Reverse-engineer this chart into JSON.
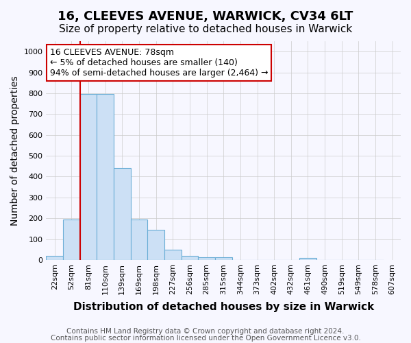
{
  "title1": "16, CLEEVES AVENUE, WARWICK, CV34 6LT",
  "title2": "Size of property relative to detached houses in Warwick",
  "xlabel": "Distribution of detached houses by size in Warwick",
  "ylabel": "Number of detached properties",
  "tick_labels": [
    "22sqm",
    "52sqm",
    "81sqm",
    "110sqm",
    "139sqm",
    "169sqm",
    "198sqm",
    "227sqm",
    "256sqm",
    "285sqm",
    "315sqm",
    "344sqm",
    "373sqm",
    "402sqm",
    "432sqm",
    "461sqm",
    "490sqm",
    "519sqm",
    "549sqm",
    "578sqm",
    "607sqm"
  ],
  "values": [
    20,
    195,
    795,
    795,
    440,
    195,
    143,
    48,
    18,
    13,
    13,
    0,
    0,
    0,
    0,
    10,
    0,
    0,
    0,
    0
  ],
  "bar_color": "#cce0f5",
  "bar_edge_color": "#6baed6",
  "red_line_x": 2,
  "annotation_text": "16 CLEEVES AVENUE: 78sqm\n← 5% of detached houses are smaller (140)\n94% of semi-detached houses are larger (2,464) →",
  "annotation_box_color": "#ffffff",
  "annotation_box_edge": "#cc0000",
  "red_line_color": "#cc0000",
  "ylim": [
    0,
    1050
  ],
  "yticks": [
    0,
    100,
    200,
    300,
    400,
    500,
    600,
    700,
    800,
    900,
    1000
  ],
  "grid_color": "#cccccc",
  "background_color": "#f7f7ff",
  "footer1": "Contains HM Land Registry data © Crown copyright and database right 2024.",
  "footer2": "Contains public sector information licensed under the Open Government Licence v3.0.",
  "title1_fontsize": 13,
  "title2_fontsize": 11,
  "xlabel_fontsize": 11,
  "ylabel_fontsize": 10,
  "tick_fontsize": 8,
  "annotation_fontsize": 9,
  "footer_fontsize": 7.5
}
